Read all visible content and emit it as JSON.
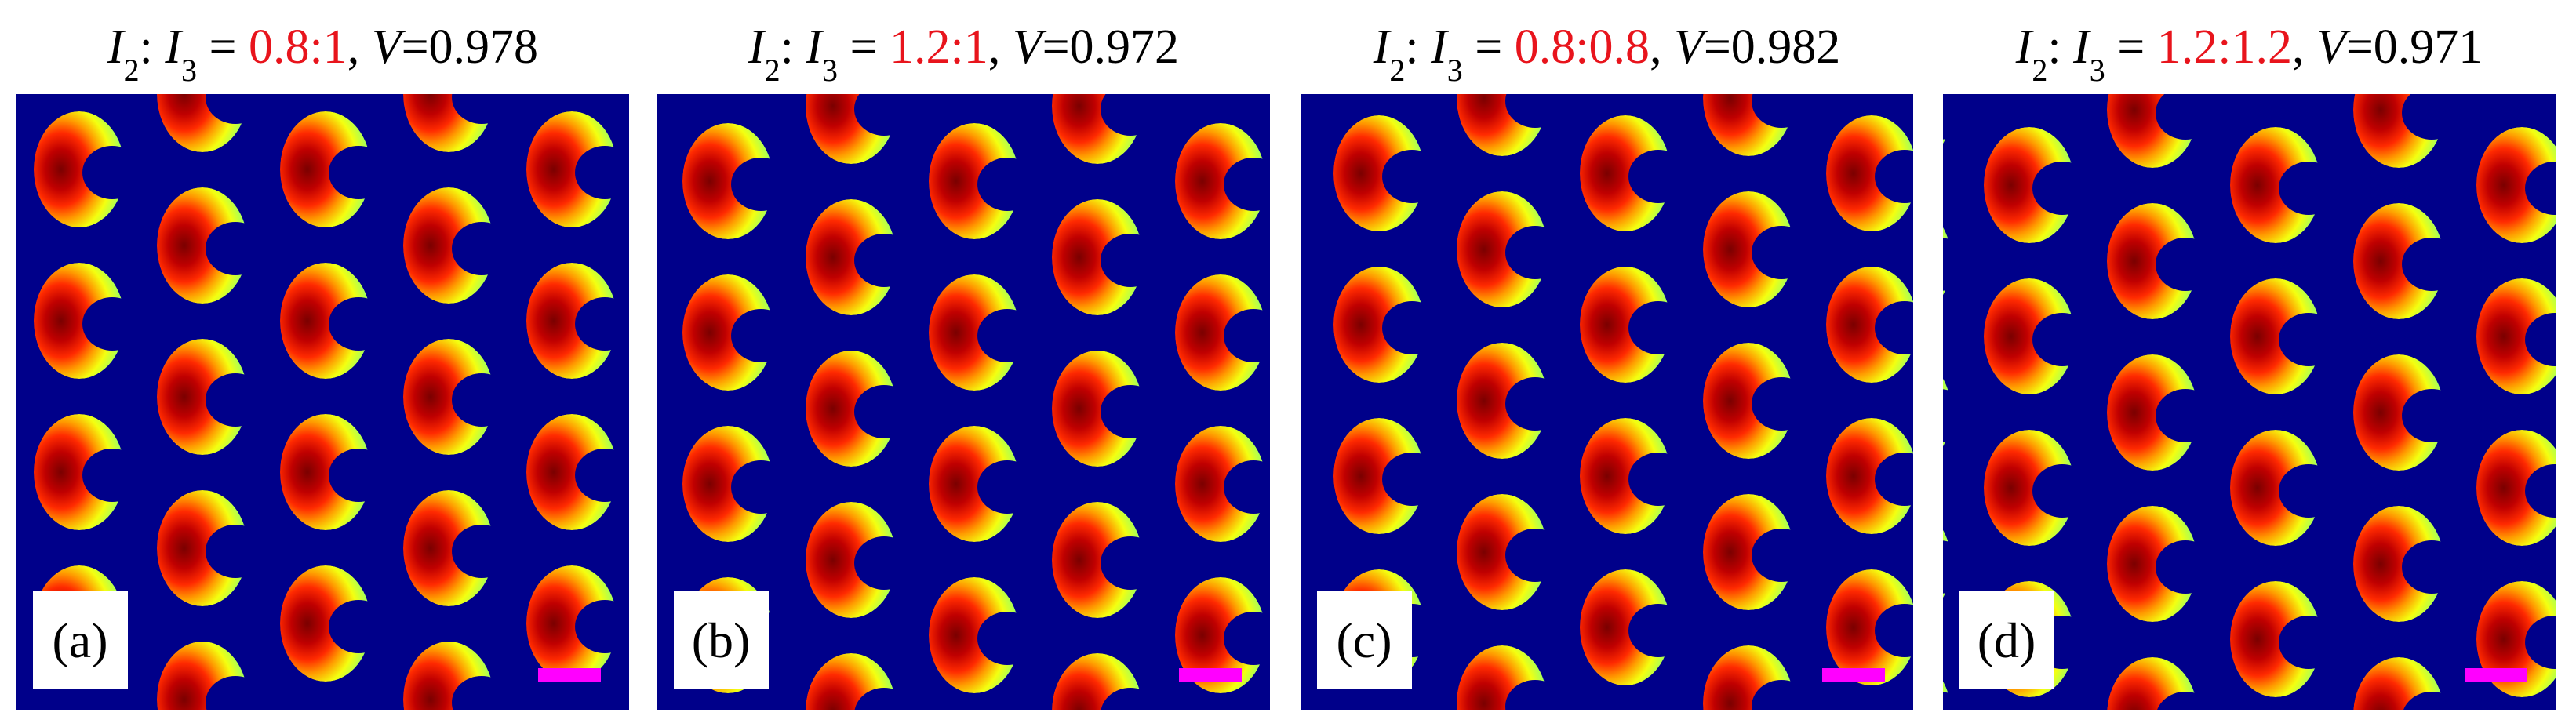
{
  "symbols": {
    "i": "I",
    "two": "2",
    "three": "3",
    "colon": ": ",
    "equals": " = ",
    "comma": ", ",
    "v": "V",
    "v_equals": "="
  },
  "panels": [
    {
      "ratio": "0.8:1",
      "v_value": "0.978",
      "label": "(a)"
    },
    {
      "ratio": "1.2:1",
      "v_value": "0.972",
      "label": "(b)"
    },
    {
      "ratio": "0.8:0.8",
      "v_value": "0.982",
      "label": "(c)"
    },
    {
      "ratio": "1.2:1.2",
      "v_value": "0.971",
      "label": "(d)"
    }
  ]
}
